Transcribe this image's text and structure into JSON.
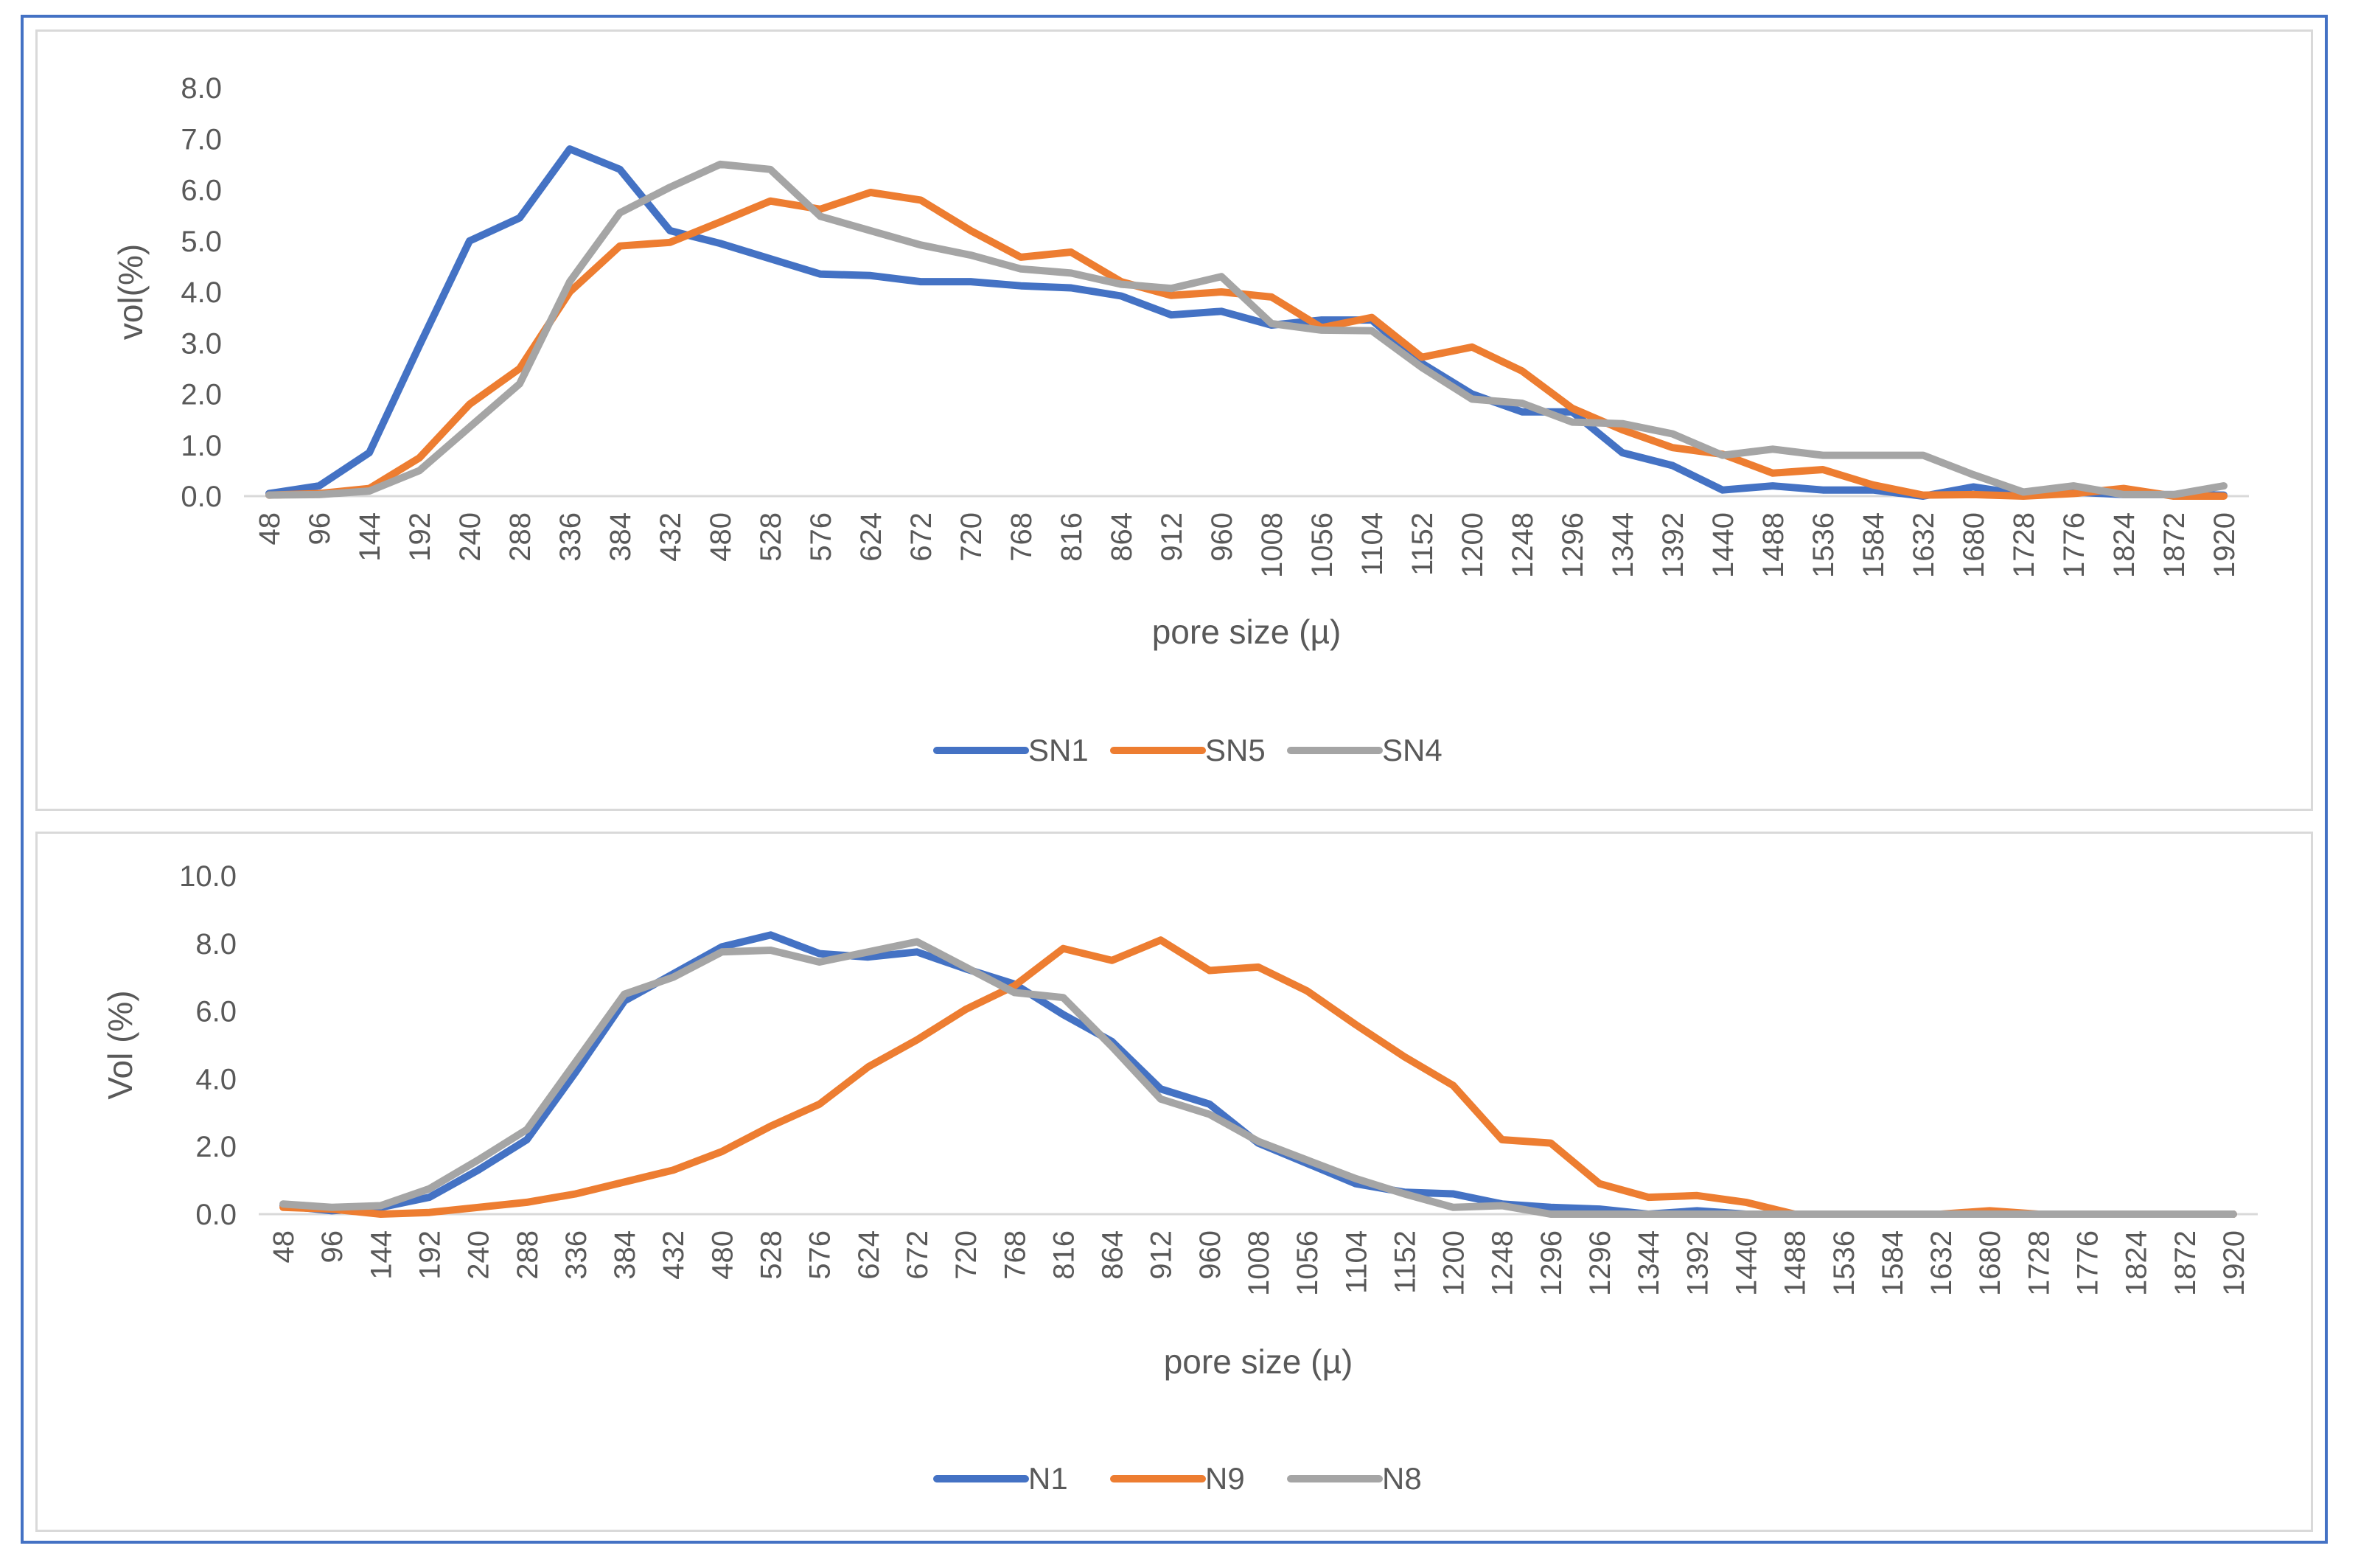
{
  "chart_data": [
    {
      "type": "line",
      "title": "",
      "xlabel": "pore size (µ)",
      "ylabel": "vol(%)",
      "ylim": [
        0,
        8
      ],
      "ytick_step": 1,
      "ytick_labels": [
        "0.0",
        "1.0",
        "2.0",
        "3.0",
        "4.0",
        "5.0",
        "6.0",
        "7.0",
        "8.0"
      ],
      "categories": [
        "48",
        "96",
        "144",
        "192",
        "240",
        "288",
        "336",
        "384",
        "432",
        "480",
        "528",
        "576",
        "624",
        "672",
        "720",
        "768",
        "816",
        "864",
        "912",
        "960",
        "1008",
        "1056",
        "1104",
        "1152",
        "1200",
        "1248",
        "1296",
        "1344",
        "1392",
        "1440",
        "1488",
        "1536",
        "1584",
        "1632",
        "1680",
        "1728",
        "1776",
        "1824",
        "1872",
        "1920"
      ],
      "legend_position": "bottom",
      "series": [
        {
          "name": "SN1",
          "color": "#4472c4",
          "values": [
            0.05,
            0.2,
            0.85,
            2.95,
            5.0,
            5.45,
            6.8,
            6.4,
            5.2,
            4.95,
            4.65,
            4.35,
            4.32,
            4.2,
            4.2,
            4.12,
            4.08,
            3.92,
            3.55,
            3.62,
            3.35,
            3.45,
            3.45,
            2.6,
            2.0,
            1.65,
            1.65,
            0.85,
            0.6,
            0.12,
            0.2,
            0.12,
            0.12,
            0.0,
            0.18,
            0.03,
            0.08,
            0.03,
            0.03,
            0.02
          ]
        },
        {
          "name": "SN5",
          "color": "#ed7d31",
          "values": [
            0.02,
            0.05,
            0.15,
            0.75,
            1.8,
            2.5,
            4.0,
            4.9,
            4.97,
            5.37,
            5.78,
            5.62,
            5.95,
            5.8,
            5.2,
            4.68,
            4.78,
            4.2,
            3.93,
            4.0,
            3.9,
            3.3,
            3.5,
            2.72,
            2.92,
            2.45,
            1.72,
            1.3,
            0.95,
            0.82,
            0.45,
            0.52,
            0.22,
            0.02,
            0.03,
            0.0,
            0.05,
            0.15,
            0.0,
            0.0
          ]
        },
        {
          "name": "SN4",
          "color": "#a5a5a5",
          "values": [
            0.02,
            0.03,
            0.1,
            0.5,
            1.35,
            2.2,
            4.2,
            5.55,
            6.05,
            6.5,
            6.4,
            5.48,
            5.2,
            4.92,
            4.72,
            4.45,
            4.37,
            4.15,
            4.07,
            4.3,
            3.38,
            3.25,
            3.24,
            2.52,
            1.9,
            1.82,
            1.45,
            1.42,
            1.22,
            0.8,
            0.92,
            0.8,
            0.8,
            0.8,
            0.42,
            0.08,
            0.2,
            0.03,
            0.03,
            0.2
          ]
        }
      ]
    },
    {
      "type": "line",
      "title": "",
      "xlabel": "pore size (µ)",
      "ylabel": "Vol (%)",
      "ylim": [
        0,
        10
      ],
      "ytick_step": 2,
      "ytick_labels": [
        "0.0",
        "2.0",
        "4.0",
        "6.0",
        "8.0",
        "10.0"
      ],
      "categories": [
        "48",
        "96",
        "144",
        "192",
        "240",
        "288",
        "336",
        "384",
        "432",
        "480",
        "528",
        "576",
        "624",
        "672",
        "720",
        "768",
        "816",
        "864",
        "912",
        "960",
        "1008",
        "1056",
        "1104",
        "1152",
        "1200",
        "1248",
        "1296",
        "1296",
        "1344",
        "1392",
        "1440",
        "1488",
        "1536",
        "1584",
        "1632",
        "1680",
        "1728",
        "1776",
        "1824",
        "1872",
        "1920"
      ],
      "legend_position": "bottom",
      "series": [
        {
          "name": "N1",
          "color": "#4472c4",
          "values": [
            0.25,
            0.1,
            0.2,
            0.5,
            1.3,
            2.2,
            4.2,
            6.3,
            7.1,
            7.9,
            8.25,
            7.7,
            7.6,
            7.75,
            7.25,
            6.8,
            5.9,
            5.1,
            3.7,
            3.25,
            2.1,
            1.5,
            0.9,
            0.65,
            0.6,
            0.3,
            0.2,
            0.15,
            0.0,
            0.1,
            0.0,
            0.0,
            0.0,
            0.0,
            0.0,
            0.0,
            0.0,
            0.0,
            0.0,
            0.0,
            0.0
          ]
        },
        {
          "name": "N9",
          "color": "#ed7d31",
          "values": [
            0.2,
            0.15,
            0.0,
            0.05,
            0.2,
            0.35,
            0.6,
            0.95,
            1.3,
            1.85,
            2.6,
            3.25,
            4.35,
            5.15,
            6.05,
            6.75,
            7.85,
            7.5,
            8.1,
            7.2,
            7.3,
            6.6,
            5.6,
            4.65,
            3.8,
            2.2,
            2.1,
            0.9,
            0.5,
            0.55,
            0.35,
            0.0,
            0.0,
            0.0,
            0.0,
            0.1,
            0.0,
            0.0,
            0.0,
            0.0,
            0.0
          ]
        },
        {
          "name": "N8",
          "color": "#a5a5a5",
          "values": [
            0.3,
            0.2,
            0.25,
            0.75,
            1.6,
            2.5,
            4.5,
            6.5,
            7.0,
            7.75,
            7.8,
            7.45,
            7.75,
            8.05,
            7.3,
            6.55,
            6.4,
            4.95,
            3.4,
            2.95,
            2.15,
            1.6,
            1.05,
            0.6,
            0.2,
            0.25,
            0.0,
            0.0,
            0.0,
            0.0,
            0.0,
            0.0,
            0.0,
            0.0,
            0.0,
            0.0,
            0.0,
            0.0,
            0.0,
            0.0,
            0.0
          ]
        }
      ]
    }
  ]
}
